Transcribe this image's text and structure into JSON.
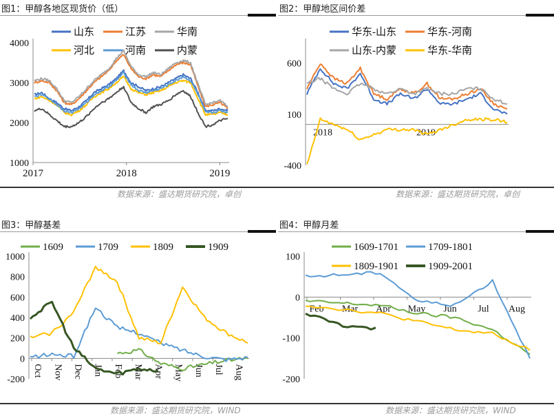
{
  "colors": {
    "blue": "#4472c4",
    "orange": "#ed7d31",
    "gray": "#a5a5a5",
    "yellow": "#ffc000",
    "dgray": "#505050",
    "green": "#70ad47",
    "lblue": "#5b9bd5",
    "dgreen": "#375623"
  },
  "sources": {
    "top": "数据来源：盛达期货研究院，卓创",
    "bottom": "数据来源：盛达期货研究院，WIND"
  },
  "chart_data": [
    {
      "title": "图1：甲醇各地区现货价（低）",
      "type": "line",
      "ylim": [
        1000,
        4000
      ],
      "yticks": [
        "1000",
        "2000",
        "3000",
        "4000"
      ],
      "xticks": [
        "2017",
        "2018",
        "2019"
      ],
      "legend_position": "top",
      "x": [
        "2017-01",
        "2017-02",
        "2017-03",
        "2017-04",
        "2017-05",
        "2017-06",
        "2017-07",
        "2017-08",
        "2017-09",
        "2017-10",
        "2017-11",
        "2017-12",
        "2018-01",
        "2018-02",
        "2018-03",
        "2018-04",
        "2018-05",
        "2018-06",
        "2018-07",
        "2018-08",
        "2018-09",
        "2018-10",
        "2018-11",
        "2018-12",
        "2019-01",
        "2019-02",
        "2019-03"
      ],
      "series": [
        {
          "name": "山东",
          "values": [
            2700,
            2750,
            2600,
            2500,
            2350,
            2300,
            2400,
            2550,
            2750,
            2850,
            2950,
            3100,
            3300,
            3000,
            2900,
            2800,
            2850,
            2900,
            3000,
            3100,
            3200,
            3100,
            2750,
            2300,
            2300,
            2350,
            2300
          ]
        },
        {
          "name": "江苏",
          "values": [
            3000,
            3050,
            3000,
            2800,
            2500,
            2450,
            2600,
            2800,
            3000,
            3150,
            3300,
            3550,
            3700,
            3350,
            3150,
            3100,
            3200,
            3150,
            3300,
            3450,
            3500,
            3450,
            2900,
            2400,
            2450,
            2500,
            2350
          ]
        },
        {
          "name": "华南",
          "values": [
            3050,
            3100,
            3050,
            2850,
            2550,
            2500,
            2650,
            2850,
            3050,
            3200,
            3350,
            3600,
            3800,
            3400,
            3200,
            3150,
            3250,
            3200,
            3350,
            3500,
            3550,
            3500,
            2950,
            2450,
            2500,
            2550,
            2400
          ]
        },
        {
          "name": "河北",
          "values": [
            2600,
            2650,
            2550,
            2450,
            2250,
            2200,
            2300,
            2450,
            2650,
            2750,
            2850,
            3000,
            3150,
            2850,
            2750,
            2700,
            2750,
            2800,
            2900,
            3000,
            3050,
            3000,
            2600,
            2200,
            2200,
            2250,
            2200
          ]
        },
        {
          "name": "河南",
          "values": [
            2650,
            2700,
            2600,
            2450,
            2300,
            2250,
            2350,
            2500,
            2700,
            2800,
            2900,
            3050,
            3250,
            2950,
            2800,
            2750,
            2800,
            2850,
            2950,
            3050,
            3150,
            3050,
            2700,
            2250,
            2250,
            2300,
            2250
          ]
        },
        {
          "name": "内蒙",
          "values": [
            2300,
            2350,
            2200,
            2050,
            1900,
            1900,
            2000,
            2150,
            2350,
            2500,
            2600,
            2750,
            2900,
            2500,
            2350,
            2250,
            2400,
            2450,
            2550,
            2700,
            2800,
            2650,
            2250,
            1900,
            1950,
            2050,
            2100
          ]
        }
      ]
    },
    {
      "title": "图2：甲醇地区间价差",
      "type": "line",
      "ylim": [
        -400,
        800
      ],
      "yticks": [
        "-400",
        "100",
        "600"
      ],
      "xticks": [
        "2018",
        "2019"
      ],
      "legend_position": "top",
      "x": [
        "2017-12",
        "2018-01",
        "2018-02",
        "2018-03",
        "2018-04",
        "2018-05",
        "2018-06",
        "2018-07",
        "2018-08",
        "2018-09",
        "2018-10",
        "2018-11",
        "2018-12",
        "2019-01",
        "2019-02",
        "2019-03"
      ],
      "series": [
        {
          "name": "华东-山东",
          "values": [
            300,
            550,
            400,
            350,
            500,
            250,
            200,
            300,
            250,
            350,
            200,
            200,
            250,
            300,
            150,
            100
          ]
        },
        {
          "name": "华东-河南",
          "values": [
            350,
            600,
            450,
            400,
            550,
            300,
            250,
            350,
            300,
            400,
            250,
            250,
            300,
            350,
            200,
            150
          ]
        },
        {
          "name": "山东-内蒙",
          "values": [
            400,
            450,
            350,
            300,
            400,
            350,
            300,
            350,
            300,
            350,
            300,
            300,
            350,
            350,
            250,
            200
          ]
        },
        {
          "name": "华东-华南",
          "values": [
            -400,
            50,
            0,
            -50,
            -150,
            -100,
            -50,
            -50,
            -50,
            -100,
            -50,
            0,
            50,
            50,
            50,
            20
          ]
        }
      ]
    },
    {
      "title": "图3：甲醇基差",
      "type": "line",
      "ylim": [
        -200,
        1000
      ],
      "yticks": [
        "-200",
        "0",
        "200",
        "400",
        "600",
        "800",
        "1000"
      ],
      "xticks": [
        "Oct",
        "Nov",
        "Dec",
        "Jan",
        "Feb",
        "Mar",
        "Apr",
        "May",
        "Jun",
        "Jul",
        "Aug"
      ],
      "legend_position": "top",
      "series": [
        {
          "name": "1609",
          "values": [
            null,
            null,
            null,
            null,
            50,
            80,
            -50,
            -100,
            -60,
            -20,
            0
          ]
        },
        {
          "name": "1709",
          "values": [
            10,
            40,
            20,
            500,
            300,
            250,
            150,
            80,
            20,
            -10,
            10
          ]
        },
        {
          "name": "1809",
          "values": [
            200,
            250,
            450,
            900,
            750,
            200,
            150,
            700,
            400,
            250,
            150
          ]
        },
        {
          "name": "1909",
          "values": [
            400,
            550,
            100,
            -100,
            -150,
            -100,
            -120,
            null,
            null,
            null,
            null
          ]
        }
      ]
    },
    {
      "title": "图4：甲醇月差",
      "type": "line",
      "ylim": [
        -200,
        100
      ],
      "yticks": [
        "-200",
        "-100",
        "0",
        "100"
      ],
      "xticks": [
        "Feb",
        "Mar",
        "Apr",
        "May",
        "Jun",
        "Jul",
        "Aug"
      ],
      "legend_position": "top",
      "series": [
        {
          "name": "1609-1701",
          "values": [
            -10,
            -15,
            -20,
            -40,
            -50,
            -80,
            -140
          ]
        },
        {
          "name": "1709-1801",
          "values": [
            50,
            55,
            60,
            -10,
            -20,
            40,
            -150
          ]
        },
        {
          "name": "1809-1901",
          "values": [
            -20,
            -30,
            -40,
            -60,
            -80,
            -90,
            -130
          ]
        },
        {
          "name": "1909-2001",
          "values": [
            -40,
            -70,
            -80,
            null,
            null,
            null,
            null
          ]
        }
      ]
    }
  ]
}
